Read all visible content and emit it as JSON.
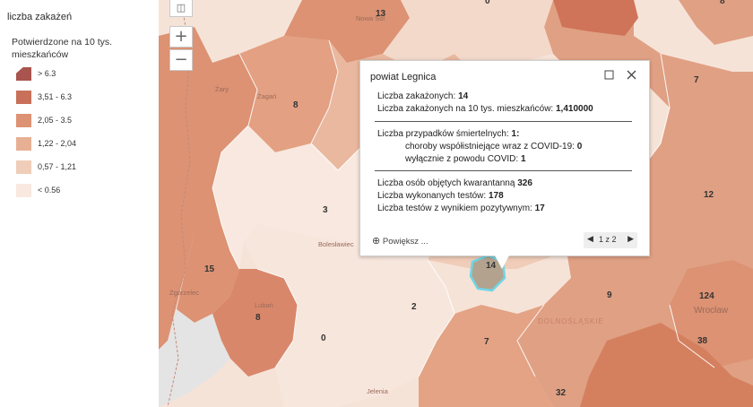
{
  "legend": {
    "title": "liczba zakażeń",
    "subtitle": "Potwierdzone na 10 tys. mieszkańców",
    "classes": [
      {
        "label": "> 6.3",
        "color": "#a9544e"
      },
      {
        "label": "3,51 - 6.3",
        "color": "#c8705a"
      },
      {
        "label": "2,05 - 3.5",
        "color": "#dc9273"
      },
      {
        "label": "1,22 - 2,04",
        "color": "#e7b094"
      },
      {
        "label": "0,57 - 1,21",
        "color": "#f0cdb9"
      },
      {
        "label": "< 0.56",
        "color": "#f8e8df"
      }
    ]
  },
  "map_controls": {
    "basemap_icon": "image-icon",
    "zoom_in": "+",
    "zoom_out": "−"
  },
  "map": {
    "counts": {
      "n13": "13",
      "n0top": "0",
      "n8top": "8",
      "n7": "7",
      "n8": "8",
      "n3": "3",
      "n12": "12",
      "n15": "15",
      "n14": "14",
      "n2": "2",
      "n9": "9",
      "n124": "124",
      "n8b": "8",
      "n0": "0",
      "n7b": "7",
      "n38": "38",
      "n32": "32"
    },
    "places": {
      "nowasol": "Nowa Sól",
      "zary": "Żary",
      "zagan": "Żagań",
      "boleslawiec": "Bolesławiec",
      "zgorzelec": "Zgorzelec",
      "luban": "Lubań",
      "wroclaw": "Wrocław",
      "dolnoslaskie": "DOLNOŚLĄSKIE",
      "jelenia": "Jelenia"
    }
  },
  "popup": {
    "title": "powiat Legnica",
    "infected_label": "Liczba zakażonych:",
    "infected_value": "14",
    "per10k_label": "Liczba zakażonych na 10 tys. mieszkańców:",
    "per10k_value": "1,410000",
    "deaths_label": "Liczba przypadków śmiertelnych:",
    "deaths_value": "1:",
    "comorb_label": "choroby współistniejące wraz z COVID-19:",
    "comorb_value": "0",
    "covid_only_label": "wyłącznie z powodu COVID:",
    "covid_only_value": "1",
    "quarantine_label": "Liczba osób objętych kwarantanną",
    "quarantine_value": "326",
    "tests_label": "Liczba wykonanych testów:",
    "tests_value": "178",
    "positive_label": "Liczba testów z wynikiem pozytywnym:",
    "positive_value": "17",
    "zoom_label": "Powiększ ...",
    "pager_text": "1 z 2"
  }
}
